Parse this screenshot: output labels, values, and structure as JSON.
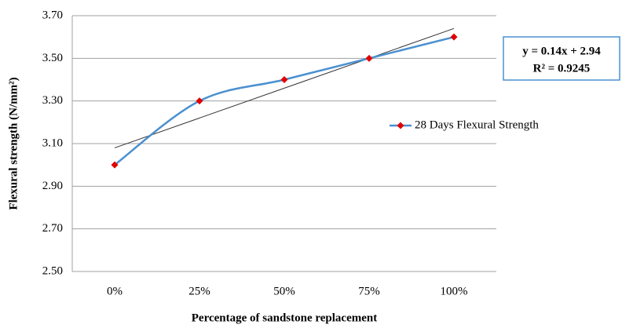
{
  "chart_data": {
    "type": "line",
    "categories": [
      "0%",
      "25%",
      "50%",
      "75%",
      "100%"
    ],
    "series": [
      {
        "name": "28 Days Flexural Strength",
        "color": "#4a90d0",
        "marker_color": "#e00000",
        "values": [
          3.0,
          3.3,
          3.4,
          3.5,
          3.6
        ]
      }
    ],
    "xlabel": "Percentage of sandstone replacement",
    "ylabel": "Flexural strength (N/mm²)",
    "ylim": [
      2.5,
      3.7
    ],
    "yticks": [
      {
        "value": 2.5,
        "label": "2.50"
      },
      {
        "value": 2.7,
        "label": "2.70"
      },
      {
        "value": 2.9,
        "label": "2.90"
      },
      {
        "value": 3.1,
        "label": "3.10"
      },
      {
        "value": 3.3,
        "label": "3.30"
      },
      {
        "value": 3.5,
        "label": "3.50"
      },
      {
        "value": 3.7,
        "label": "3.70"
      }
    ],
    "grid": true,
    "legend": "right",
    "trendline": {
      "slope": 0.14,
      "intercept": 2.94
    },
    "annotations": [
      "y = 0.14x + 2.94",
      "R² = 0.9245"
    ]
  }
}
